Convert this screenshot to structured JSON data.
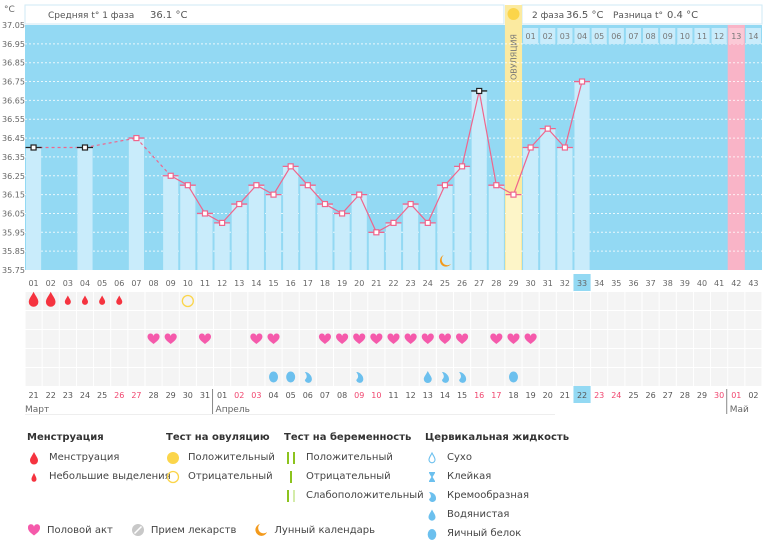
{
  "header": {
    "unit": "°C",
    "phase1_label": "Средняя t° 1 фаза",
    "phase1_value": "36.1 °C",
    "phase2_label": "2 фаза",
    "phase2_value": "36.5 °C",
    "diff_label": "Разница t°",
    "diff_value": "0.4 °C",
    "ovulation_label": "ОВУЛЯЦИЯ"
  },
  "colors": {
    "plot_bg": "#93d9f3",
    "bar": "#c9ecfb",
    "line": "#f0658c",
    "ovulation": "#fbeaa0",
    "expected_period": "#f9b4c7",
    "today": "#93d9f3",
    "weekend": "#f0456e",
    "menstruation": "#f5333f",
    "heart": "#f55aab",
    "fluid": "#6cc0ee",
    "ovulation_test": "#fbd54a",
    "moon": "#f39a1c"
  },
  "chart_data": {
    "type": "bar",
    "ylabel": "°C",
    "ylim": [
      35.75,
      37.05
    ],
    "yticks": [
      "37.05",
      "36.95",
      "36.85",
      "36.75",
      "36.65",
      "36.55",
      "36.45",
      "36.35",
      "36.25",
      "36.15",
      "36.05",
      "35.95",
      "35.85",
      "35.75"
    ],
    "cycle_days": [
      "01",
      "02",
      "03",
      "04",
      "05",
      "06",
      "07",
      "08",
      "09",
      "10",
      "11",
      "12",
      "13",
      "14",
      "15",
      "16",
      "17",
      "18",
      "19",
      "20",
      "21",
      "22",
      "23",
      "24",
      "25",
      "26",
      "27",
      "28",
      "29",
      "30",
      "31",
      "32",
      "33",
      "34",
      "35",
      "36",
      "37",
      "38",
      "39",
      "40",
      "41",
      "42",
      "43"
    ],
    "temperatures": [
      36.4,
      null,
      null,
      36.4,
      null,
      null,
      36.45,
      null,
      36.25,
      36.2,
      36.05,
      36.0,
      36.1,
      36.2,
      36.15,
      36.3,
      36.2,
      36.1,
      36.05,
      36.15,
      35.95,
      36.0,
      36.1,
      36.0,
      36.2,
      36.3,
      36.7,
      36.2,
      36.15,
      36.4,
      36.5,
      36.4,
      36.75,
      null,
      null,
      null,
      null,
      null,
      null,
      null,
      null,
      null,
      null
    ],
    "excluded_days": [
      1,
      4,
      27
    ],
    "ovulation_day": 29,
    "current_day": 33,
    "expected_period_day": 42,
    "post_ovulation_day_labels": [
      "01",
      "02",
      "03",
      "04",
      "05",
      "06",
      "07",
      "08",
      "09",
      "10",
      "11",
      "12",
      "13",
      "14"
    ],
    "moon_day": 25
  },
  "calendar": {
    "dates": [
      "21",
      "22",
      "23",
      "24",
      "25",
      "26",
      "27",
      "28",
      "29",
      "30",
      "31",
      "01",
      "02",
      "03",
      "04",
      "05",
      "06",
      "07",
      "08",
      "09",
      "10",
      "11",
      "12",
      "13",
      "14",
      "15",
      "16",
      "17",
      "18",
      "19",
      "20",
      "21",
      "22",
      "23",
      "24",
      "25",
      "26",
      "27",
      "28",
      "29",
      "30",
      "01",
      "02"
    ],
    "weekend_days": [
      6,
      7,
      13,
      14,
      20,
      21,
      27,
      28,
      34,
      35,
      41,
      42
    ],
    "months": [
      {
        "label": "Март",
        "start_day": 1
      },
      {
        "label": "Апрель",
        "start_day": 12
      },
      {
        "label": "Май",
        "start_day": 42
      }
    ]
  },
  "events": {
    "menstruation_heavy": [
      1,
      2
    ],
    "menstruation_light": [
      3,
      4,
      5,
      6
    ],
    "ovulation_test_negative": [
      10
    ],
    "intercourse": [
      8,
      9,
      11,
      14,
      15,
      18,
      19,
      20,
      21,
      22,
      23,
      24,
      25,
      26,
      28,
      29,
      30
    ],
    "fluid_egg_white": [
      15,
      16,
      29
    ],
    "fluid_creamy": [
      17,
      20,
      25,
      26
    ],
    "fluid_watery": [
      24
    ]
  },
  "legend": {
    "menstruation": {
      "title": "Менструация",
      "items": [
        "Менструация",
        "Небольшие выделения"
      ]
    },
    "ovulation_test": {
      "title": "Тест на овуляцию",
      "items": [
        "Положительный",
        "Отрицательный"
      ]
    },
    "pregnancy_test": {
      "title": "Тест на беременность",
      "items": [
        "Положительный",
        "Отрицательный",
        "Слабоположительный"
      ]
    },
    "cervical_fluid": {
      "title": "Цервикальная жидкость",
      "items": [
        "Сухо",
        "Клейкая",
        "Кремообразная",
        "Водянистая",
        "Яичный белок"
      ]
    },
    "other": [
      "Половой акт",
      "Прием лекарств",
      "Лунный календарь"
    ]
  }
}
